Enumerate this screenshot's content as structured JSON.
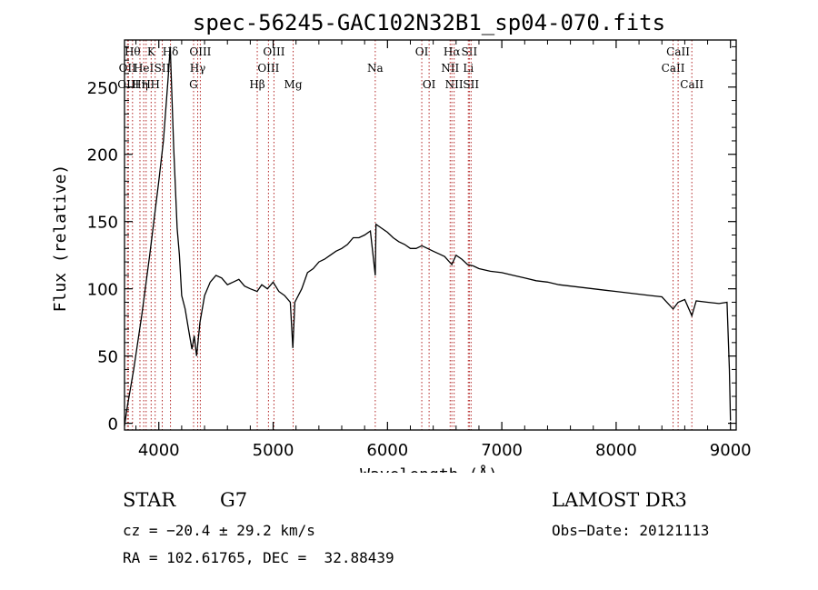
{
  "chart_data": {
    "type": "line",
    "title": "spec-56245-GAC102N32B1_sp04-070.fits",
    "xlabel": "Wavelength (Å)",
    "ylabel": "Flux (relative)",
    "xlim": [
      3700,
      9050
    ],
    "ylim": [
      -5,
      285
    ],
    "x_ticks": [
      4000,
      5000,
      6000,
      7000,
      8000,
      9000
    ],
    "y_ticks": [
      0,
      50,
      100,
      150,
      200,
      250
    ],
    "series": [
      {
        "name": "spectrum",
        "x": [
          3700,
          3720,
          3780,
          3850,
          3920,
          4000,
          4040,
          4080,
          4100,
          4130,
          4160,
          4180,
          4200,
          4230,
          4260,
          4290,
          4310,
          4330,
          4360,
          4400,
          4450,
          4500,
          4550,
          4600,
          4650,
          4700,
          4750,
          4800,
          4860,
          4900,
          4950,
          5000,
          5050,
          5100,
          5150,
          5172,
          5190,
          5250,
          5300,
          5350,
          5400,
          5450,
          5500,
          5550,
          5600,
          5650,
          5700,
          5750,
          5800,
          5850,
          5893,
          5900,
          5950,
          6000,
          6050,
          6100,
          6150,
          6200,
          6250,
          6300,
          6350,
          6400,
          6450,
          6500,
          6563,
          6600,
          6650,
          6700,
          6750,
          6800,
          6900,
          7000,
          7100,
          7200,
          7300,
          7400,
          7500,
          7600,
          7700,
          7800,
          7900,
          8000,
          8100,
          8200,
          8300,
          8400,
          8498,
          8542,
          8600,
          8662,
          8700,
          8800,
          8900,
          8970,
          8990,
          9000
        ],
        "y": [
          -2,
          10,
          40,
          80,
          125,
          180,
          210,
          255,
          280,
          205,
          145,
          125,
          95,
          85,
          70,
          55,
          65,
          50,
          75,
          95,
          105,
          110,
          108,
          103,
          105,
          107,
          102,
          100,
          98,
          103,
          100,
          105,
          98,
          95,
          90,
          56,
          90,
          100,
          112,
          115,
          120,
          122,
          125,
          128,
          130,
          133,
          138,
          138,
          140,
          143,
          110,
          148,
          145,
          142,
          138,
          135,
          133,
          130,
          130,
          132,
          130,
          128,
          126,
          124,
          118,
          125,
          122,
          118,
          117,
          115,
          113,
          112,
          110,
          108,
          106,
          105,
          103,
          102,
          101,
          100,
          99,
          98,
          97,
          96,
          95,
          94,
          85,
          90,
          92,
          80,
          91,
          90,
          89,
          90,
          40,
          2
        ]
      }
    ],
    "line_markers": [
      {
        "wave": 3726,
        "label": "OII",
        "row": 1
      },
      {
        "wave": 3734,
        "label": "OIII",
        "row": 2
      },
      {
        "wave": 3770,
        "label": "Hθ",
        "row": 0
      },
      {
        "wave": 3835,
        "label": "Hη",
        "row": 2
      },
      {
        "wave": 3868,
        "label": "HeI",
        "row": 1
      },
      {
        "wave": 3889,
        "label": "H",
        "row": 2
      },
      {
        "wave": 3933,
        "label": "K",
        "row": 0
      },
      {
        "wave": 3968,
        "label": "H",
        "row": 2
      },
      {
        "wave": 4030,
        "label": "SII",
        "row": 1
      },
      {
        "wave": 4102,
        "label": "Hδ",
        "row": 0
      },
      {
        "wave": 4304,
        "label": "G",
        "row": 2
      },
      {
        "wave": 4340,
        "label": "Hγ",
        "row": 1
      },
      {
        "wave": 4363,
        "label": "OIII",
        "row": 0
      },
      {
        "wave": 4861,
        "label": "Hβ",
        "row": 2
      },
      {
        "wave": 4959,
        "label": "OIII",
        "row": 1
      },
      {
        "wave": 5007,
        "label": "OIII",
        "row": 0
      },
      {
        "wave": 5175,
        "label": "Mg",
        "row": 2
      },
      {
        "wave": 5893,
        "label": "Na",
        "row": 1
      },
      {
        "wave": 6300,
        "label": "OI",
        "row": 0
      },
      {
        "wave": 6364,
        "label": "OI",
        "row": 2
      },
      {
        "wave": 6548,
        "label": "NII",
        "row": 1
      },
      {
        "wave": 6563,
        "label": "Hα",
        "row": 0
      },
      {
        "wave": 6583,
        "label": "NII",
        "row": 2
      },
      {
        "wave": 6707,
        "label": "Li",
        "row": 1
      },
      {
        "wave": 6716,
        "label": "SII",
        "row": 0
      },
      {
        "wave": 6731,
        "label": "SII",
        "row": 2
      },
      {
        "wave": 8498,
        "label": "CaII",
        "row": 1
      },
      {
        "wave": 8542,
        "label": "CaII",
        "row": 0
      },
      {
        "wave": 8662,
        "label": "CaII",
        "row": 2
      }
    ]
  },
  "info": {
    "object_class": "STAR",
    "subclass": "G7",
    "survey": "LAMOST DR3",
    "cz": "cz = −20.4 ± 29.2 km/s",
    "obs_date": "Obs−Date: 20121113",
    "coords": "RA = 102.61765, DEC =  32.88439"
  }
}
